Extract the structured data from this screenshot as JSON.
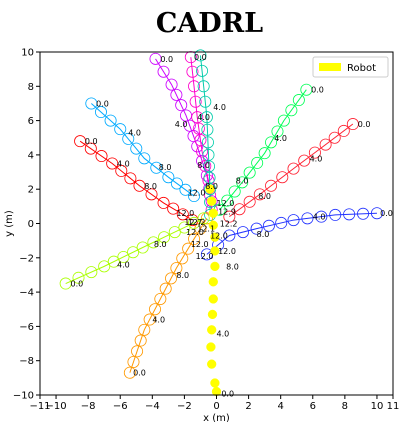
{
  "chart_data": {
    "type": "line",
    "title": "CADRL",
    "xlabel": "x (m)",
    "ylabel": "y (m)",
    "xlim": [
      -11,
      11
    ],
    "ylim": [
      -10,
      10
    ],
    "xticks": [
      -11,
      -10,
      -8,
      -6,
      -4,
      -2,
      0,
      2,
      4,
      6,
      8,
      10,
      11
    ],
    "yticks": [
      -10,
      -8,
      -6,
      -4,
      -2,
      0,
      2,
      4,
      6,
      8,
      10
    ],
    "legend": {
      "position": "top-right",
      "entries": [
        "Robot"
      ]
    },
    "robot": {
      "name": "Robot",
      "color": "#ffff00",
      "path": [
        [
          0.0,
          -9.8
        ],
        [
          -0.1,
          -9.3
        ],
        [
          -0.3,
          -8.2
        ],
        [
          -0.35,
          -7.2
        ],
        [
          -0.3,
          -6.2
        ],
        [
          -0.25,
          -5.3
        ],
        [
          -0.2,
          -4.4
        ],
        [
          -0.2,
          -3.4
        ],
        [
          -0.1,
          -2.5
        ],
        [
          -0.1,
          -1.6
        ],
        [
          -0.1,
          -0.8
        ],
        [
          -0.2,
          -0.1
        ],
        [
          -0.2,
          0.6
        ],
        [
          -0.3,
          1.3
        ],
        [
          -0.4,
          2.0
        ]
      ],
      "labels": [
        {
          "text": "0.0",
          "x": 0.3,
          "y": -9.9
        },
        {
          "text": "4.0",
          "x": 0.0,
          "y": -6.4
        },
        {
          "text": "8.0",
          "x": 0.6,
          "y": -2.5
        }
      ]
    },
    "series": [
      {
        "color": "#ff0000",
        "path": [
          [
            -8.5,
            4.8
          ],
          [
            -6.5,
            3.5
          ],
          [
            -4.8,
            2.2
          ],
          [
            -3.3,
            1.2
          ],
          [
            -1.5,
            0.2
          ]
        ],
        "labels": [
          {
            "text": "0.0",
            "x": -8.2,
            "y": 4.8
          },
          {
            "text": "4.0",
            "x": -6.2,
            "y": 3.5
          },
          {
            "text": "8.0",
            "x": -4.5,
            "y": 2.2
          },
          {
            "text": "12.0",
            "x": -2.5,
            "y": 0.6
          },
          {
            "text": "12.2",
            "x": -1.8,
            "y": 0.1
          }
        ]
      },
      {
        "color": "#00aaff",
        "path": [
          [
            -7.8,
            7.0
          ],
          [
            -6.0,
            5.5
          ],
          [
            -4.5,
            3.8
          ],
          [
            -3.0,
            2.7
          ],
          [
            -1.4,
            1.6
          ]
        ],
        "labels": [
          {
            "text": "0.0",
            "x": -7.5,
            "y": 7.0
          },
          {
            "text": "4.0",
            "x": -5.5,
            "y": 5.3
          },
          {
            "text": "8.0",
            "x": -3.6,
            "y": 3.3
          },
          {
            "text": "12.0",
            "x": -1.8,
            "y": 1.8
          }
        ]
      },
      {
        "color": "#cc00ff",
        "path": [
          [
            -3.8,
            9.6
          ],
          [
            -2.8,
            8.1
          ],
          [
            -1.9,
            6.3
          ],
          [
            -1.2,
            4.5
          ],
          [
            -0.6,
            2.8
          ],
          [
            -0.3,
            1.3
          ]
        ],
        "labels": [
          {
            "text": "0.0",
            "x": -3.5,
            "y": 9.6
          },
          {
            "text": "4.0",
            "x": -2.6,
            "y": 5.8
          },
          {
            "text": "8.0",
            "x": -1.2,
            "y": 3.4
          }
        ]
      },
      {
        "color": "#ff00cc",
        "path": [
          [
            -1.6,
            9.7
          ],
          [
            -1.4,
            8.0
          ],
          [
            -1.2,
            6.2
          ],
          [
            -0.9,
            4.2
          ],
          [
            -0.5,
            2.5
          ],
          [
            -0.3,
            0.8
          ]
        ],
        "labels": [
          {
            "text": "0.0",
            "x": -1.4,
            "y": 9.7
          },
          {
            "text": "4.0",
            "x": -1.2,
            "y": 6.2
          },
          {
            "text": "8.0",
            "x": -0.7,
            "y": 2.2
          }
        ]
      },
      {
        "color": "#00ccaa",
        "path": [
          [
            -1.0,
            9.8
          ],
          [
            -0.8,
            8.0
          ],
          [
            -0.6,
            6.2
          ],
          [
            -0.5,
            4.0
          ],
          [
            -0.4,
            2.0
          ],
          [
            -0.4,
            0.5
          ]
        ],
        "labels": [
          {
            "text": "4.0",
            "x": -0.2,
            "y": 6.8
          }
        ]
      },
      {
        "color": "#00ff55",
        "path": [
          [
            5.6,
            7.8
          ],
          [
            4.2,
            6.0
          ],
          [
            3.0,
            4.1
          ],
          [
            1.6,
            2.4
          ],
          [
            0.2,
            0.8
          ]
        ],
        "labels": [
          {
            "text": "0.0",
            "x": 5.9,
            "y": 7.8
          },
          {
            "text": "4.0",
            "x": 3.6,
            "y": 5.0
          },
          {
            "text": "8.0",
            "x": 1.2,
            "y": 2.5
          },
          {
            "text": "12.0",
            "x": 0.0,
            "y": 1.2
          }
        ]
      },
      {
        "color": "#ff2233",
        "path": [
          [
            8.5,
            5.8
          ],
          [
            6.8,
            4.6
          ],
          [
            4.8,
            3.2
          ],
          [
            2.7,
            1.7
          ],
          [
            0.8,
            0.4
          ]
        ],
        "labels": [
          {
            "text": "0.0",
            "x": 8.8,
            "y": 5.8
          },
          {
            "text": "4.0",
            "x": 5.8,
            "y": 3.8
          },
          {
            "text": "8.0",
            "x": 2.6,
            "y": 1.6
          },
          {
            "text": "12.9",
            "x": 0.1,
            "y": 0.7
          },
          {
            "text": "12.2",
            "x": 0.2,
            "y": 0.0
          }
        ]
      },
      {
        "color": "#2233ff",
        "path": [
          [
            10.0,
            0.6
          ],
          [
            7.4,
            0.5
          ],
          [
            4.8,
            0.2
          ],
          [
            2.5,
            -0.3
          ],
          [
            0.8,
            -0.7
          ],
          [
            -0.6,
            -1.8
          ]
        ],
        "labels": [
          {
            "text": "0.0",
            "x": 10.2,
            "y": 0.6
          },
          {
            "text": "4.0",
            "x": 6.0,
            "y": 0.4
          },
          {
            "text": "8.0",
            "x": 2.5,
            "y": -0.6
          },
          {
            "text": "12.0",
            "x": -1.3,
            "y": -1.9
          }
        ]
      },
      {
        "color": "#ff9900",
        "path": [
          [
            -5.4,
            -8.7
          ],
          [
            -4.5,
            -6.2
          ],
          [
            -3.5,
            -4.4
          ],
          [
            -2.5,
            -2.6
          ],
          [
            -1.4,
            -0.9
          ],
          [
            -0.6,
            0.3
          ]
        ],
        "labels": [
          {
            "text": "0.0",
            "x": -5.2,
            "y": -8.7
          },
          {
            "text": "4.0",
            "x": -4.0,
            "y": -5.6
          },
          {
            "text": "8.0",
            "x": -2.5,
            "y": -3.0
          },
          {
            "text": "12.0",
            "x": -1.6,
            "y": -1.2
          }
        ]
      },
      {
        "color": "#aaff00",
        "path": [
          [
            -9.4,
            -3.5
          ],
          [
            -7.0,
            -2.5
          ],
          [
            -4.6,
            -1.4
          ],
          [
            -2.6,
            -0.5
          ],
          [
            -0.8,
            0.3
          ]
        ],
        "labels": [
          {
            "text": "0.0",
            "x": -9.1,
            "y": -3.5
          },
          {
            "text": "4.0",
            "x": -6.2,
            "y": -2.4
          },
          {
            "text": "8.0",
            "x": -3.9,
            "y": -1.2
          },
          {
            "text": "12.0",
            "x": -1.9,
            "y": -0.5
          }
        ]
      }
    ],
    "extra_labels": [
      {
        "text": "12.7",
        "x": -2.0,
        "y": 0.1
      },
      {
        "text": "12.1",
        "x": -1.2,
        "y": -0.3
      },
      {
        "text": "12.0",
        "x": -0.4,
        "y": -0.7
      },
      {
        "text": "12.0",
        "x": 0.1,
        "y": -1.6
      }
    ]
  }
}
